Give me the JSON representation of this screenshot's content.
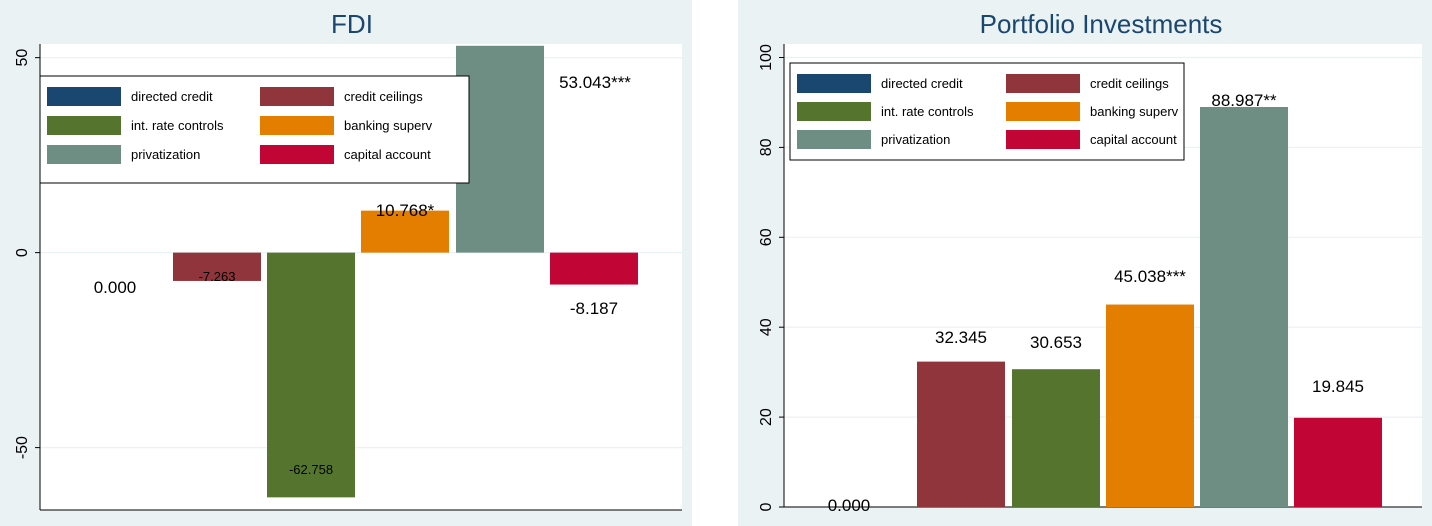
{
  "colors": {
    "directed credit": "#1a476f",
    "credit ceilings": "#90353b",
    "int. rate controls": "#55752f",
    "banking superv": "#e37e00",
    "privatization": "#6e8e84",
    "capital account": "#c10534",
    "background": "#eaf2f3",
    "plotregion": "#ffffff",
    "grid": "#eaf2f3"
  },
  "chart_data": [
    {
      "type": "bar",
      "title": "FDI",
      "xlabel": "",
      "ylabel": "",
      "ylim": [
        -66,
        53.5
      ],
      "yticks": [
        -50,
        0,
        50
      ],
      "ytick_labels": [
        "-50",
        "0",
        "50"
      ],
      "legend_position": "top-left",
      "legend": [
        "directed credit",
        "credit ceilings",
        "int. rate controls",
        "banking superv",
        "privatization",
        "capital account"
      ],
      "categories": [
        "directed credit",
        "credit ceilings",
        "int. rate controls",
        "banking superv",
        "privatization",
        "capital account"
      ],
      "values": [
        0.0,
        -7.263,
        -62.758,
        10.768,
        53.043,
        -8.187
      ],
      "labels": [
        "0.000",
        "-7.263",
        "-62.758",
        "10.768*",
        "53.043***",
        "-8.187"
      ]
    },
    {
      "type": "bar",
      "title": "Portfolio Investments",
      "xlabel": "",
      "ylabel": "",
      "ylim": [
        0,
        103
      ],
      "yticks": [
        0,
        20,
        40,
        60,
        80,
        100
      ],
      "ytick_labels": [
        "0",
        "20",
        "40",
        "60",
        "80",
        "100"
      ],
      "legend_position": "top-left",
      "legend": [
        "directed credit",
        "credit ceilings",
        "int. rate controls",
        "banking superv",
        "privatization",
        "capital account"
      ],
      "categories": [
        "directed credit",
        "credit ceilings",
        "int. rate controls",
        "banking superv",
        "privatization",
        "capital account"
      ],
      "values": [
        0.0,
        32.345,
        30.653,
        45.038,
        88.987,
        19.845
      ],
      "labels": [
        "0.000",
        "32.345",
        "30.653",
        "45.038***",
        "88.987**",
        "19.845"
      ]
    }
  ]
}
